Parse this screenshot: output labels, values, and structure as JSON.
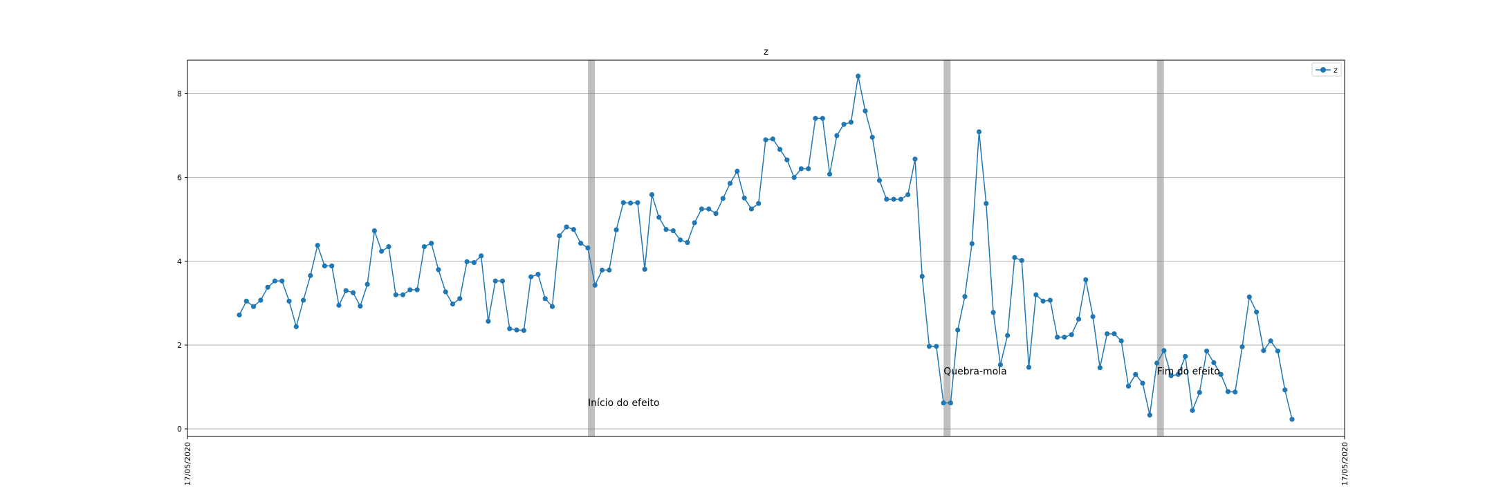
{
  "chart_data": {
    "type": "line",
    "title": "z",
    "xlabel": "",
    "ylabel": "",
    "x_tick_labels": [
      "17/05/2020",
      "17/05/2020"
    ],
    "y_ticks": [
      0,
      2,
      4,
      6,
      8
    ],
    "ylim": [
      -0.18,
      8.8
    ],
    "grid": "horizontal",
    "legend_position": "top-right",
    "colors": {
      "series": "#1f77b4",
      "band": "#808080",
      "grid": "#b0b0b0"
    },
    "series": [
      {
        "name": "z",
        "values": [
          2.72,
          3.05,
          2.92,
          3.07,
          3.38,
          3.53,
          3.53,
          3.05,
          2.44,
          3.07,
          3.66,
          4.38,
          3.89,
          3.89,
          2.95,
          3.3,
          3.25,
          2.93,
          3.45,
          4.73,
          4.24,
          4.35,
          3.2,
          3.2,
          3.32,
          3.32,
          4.35,
          4.43,
          3.8,
          3.27,
          2.98,
          3.11,
          3.99,
          3.97,
          4.13,
          2.57,
          3.53,
          3.53,
          2.39,
          2.36,
          2.35,
          3.63,
          3.69,
          3.11,
          2.92,
          4.61,
          4.82,
          4.76,
          4.43,
          4.32,
          3.43,
          3.79,
          3.79,
          4.75,
          5.4,
          5.39,
          5.4,
          3.81,
          5.59,
          5.05,
          4.76,
          4.73,
          4.51,
          4.45,
          4.92,
          5.25,
          5.25,
          5.14,
          5.5,
          5.86,
          6.15,
          5.51,
          5.25,
          5.38,
          6.9,
          6.92,
          6.67,
          6.42,
          6.0,
          6.21,
          6.21,
          7.41,
          7.41,
          6.08,
          7.0,
          7.27,
          7.32,
          8.42,
          7.59,
          6.96,
          5.93,
          5.48,
          5.48,
          5.48,
          5.59,
          6.44,
          3.64,
          1.97,
          1.97,
          0.62,
          0.62,
          2.36,
          3.16,
          4.42,
          7.09,
          5.38,
          2.78,
          1.53,
          2.23,
          4.09,
          4.02,
          1.47,
          3.2,
          3.05,
          3.07,
          2.19,
          2.19,
          2.25,
          2.62,
          3.56,
          2.68,
          1.46,
          2.27,
          2.27,
          2.1,
          1.02,
          1.3,
          1.09,
          0.33,
          1.57,
          1.87,
          1.27,
          1.3,
          1.73,
          0.44,
          0.87,
          1.86,
          1.58,
          1.3,
          0.89,
          0.88,
          1.96,
          3.15,
          2.79,
          1.87,
          2.1,
          1.86,
          0.93,
          0.23
        ]
      }
    ],
    "highlight_bands": [
      {
        "index": 49.5,
        "label": "Início do efeito",
        "label_y": 0.55
      },
      {
        "index": 99.5,
        "label": "Quebra-mola",
        "label_y": 1.3
      },
      {
        "index": 129.5,
        "label": "Fim do efeito",
        "label_y": 1.3
      }
    ]
  }
}
